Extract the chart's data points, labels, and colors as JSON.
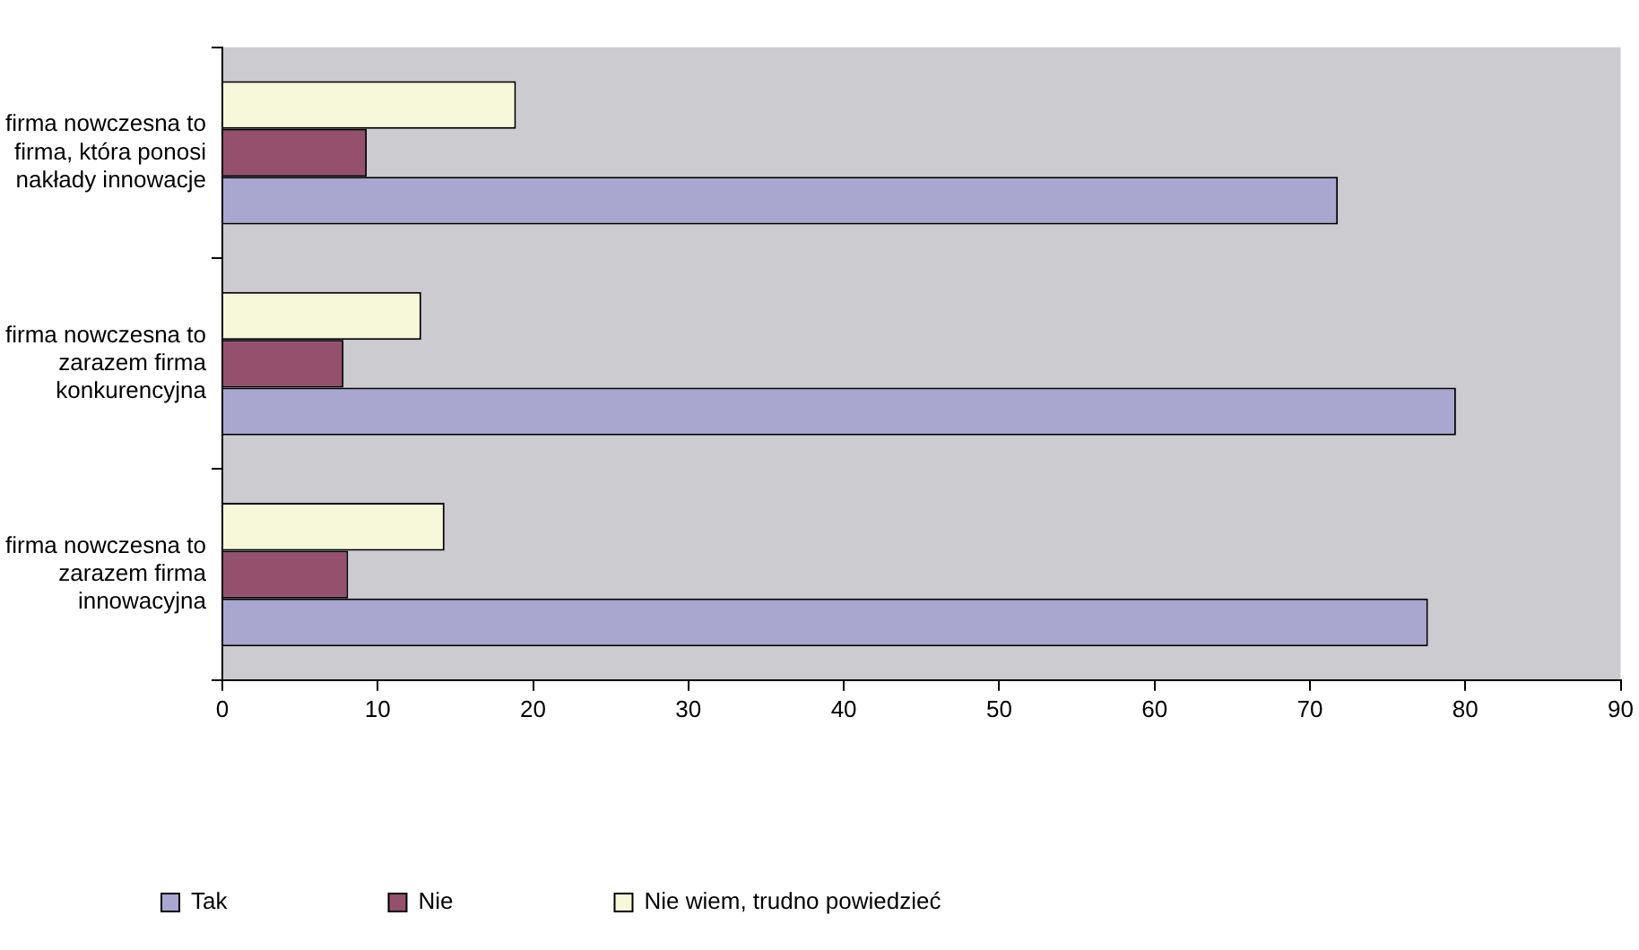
{
  "chart_data": {
    "type": "bar",
    "orientation": "horizontal",
    "categories": [
      "firma nowczesna to firma, która ponosi nakłady innowacje",
      "firma nowczesna to zarazem firma konkurencyjna",
      "firma nowczesna to zarazem firma innowacyjna"
    ],
    "series": [
      {
        "name": "Tak",
        "color": "#a9a6d0",
        "values": [
          71.8,
          79.4,
          77.6
        ]
      },
      {
        "name": "Nie",
        "color": "#95506e",
        "values": [
          9.3,
          7.8,
          8.1
        ]
      },
      {
        "name": "Nie wiem, trudno powiedzieć",
        "color": "#f7f8da",
        "values": [
          18.9,
          12.8,
          14.3
        ]
      }
    ],
    "xlim": [
      0,
      90
    ],
    "xticks": [
      0,
      10,
      20,
      30,
      40,
      50,
      60,
      70,
      80,
      90
    ],
    "grid": false,
    "legend": "bottom"
  }
}
